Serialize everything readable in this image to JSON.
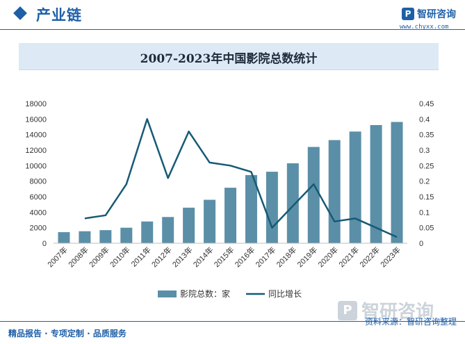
{
  "header": {
    "section_title": "产业链",
    "logo_text": "智研咨询",
    "logo_url": "www.chyxx.com",
    "logo_mark": "P"
  },
  "chart_title": "2007-2023年中国影院总数统计",
  "footer": {
    "left_text": "精品报告 · 专项定制 · 品质服务",
    "right_text": "资料来源：智研咨询整理",
    "bottom_logo_text": "智研咨询"
  },
  "colors": {
    "bar": "#5b8fa8",
    "line": "#165a73",
    "accent": "#1e5fa8"
  },
  "chart_data": {
    "type": "bar",
    "title": "2007-2023年中国影院总数统计",
    "categories": [
      "2007年",
      "2008年",
      "2009年",
      "2010年",
      "2011年",
      "2012年",
      "2013年",
      "2014年",
      "2015年",
      "2016年",
      "2017年",
      "2018年",
      "2019年",
      "2020年",
      "2021年",
      "2022年",
      "2023年"
    ],
    "series": [
      {
        "name": "影院总数：家",
        "type": "bar",
        "axis": "left",
        "values": [
          1427,
          1545,
          1687,
          2000,
          2803,
          3380,
          4583,
          5598,
          7151,
          8784,
          9215,
          10300,
          12408,
          13291,
          14392,
          15227,
          15628
        ]
      },
      {
        "name": "同比增长",
        "type": "line",
        "axis": "right",
        "values": [
          null,
          0.08,
          0.09,
          0.19,
          0.4,
          0.21,
          0.36,
          0.26,
          0.25,
          0.23,
          0.05,
          0.12,
          0.19,
          0.07,
          0.08,
          0.05,
          0.02
        ]
      }
    ],
    "y_left": {
      "min": 0,
      "max": 18000,
      "ticks": [
        "0",
        "2000",
        "4000",
        "6000",
        "8000",
        "10000",
        "12000",
        "14000",
        "16000",
        "18000"
      ]
    },
    "y_right": {
      "min": 0,
      "max": 0.45,
      "ticks": [
        "0",
        "0.05",
        "0.1",
        "0.15",
        "0.2",
        "0.25",
        "0.3",
        "0.35",
        "0.4",
        "0.45"
      ]
    },
    "grid": false,
    "legend_position": "bottom"
  }
}
